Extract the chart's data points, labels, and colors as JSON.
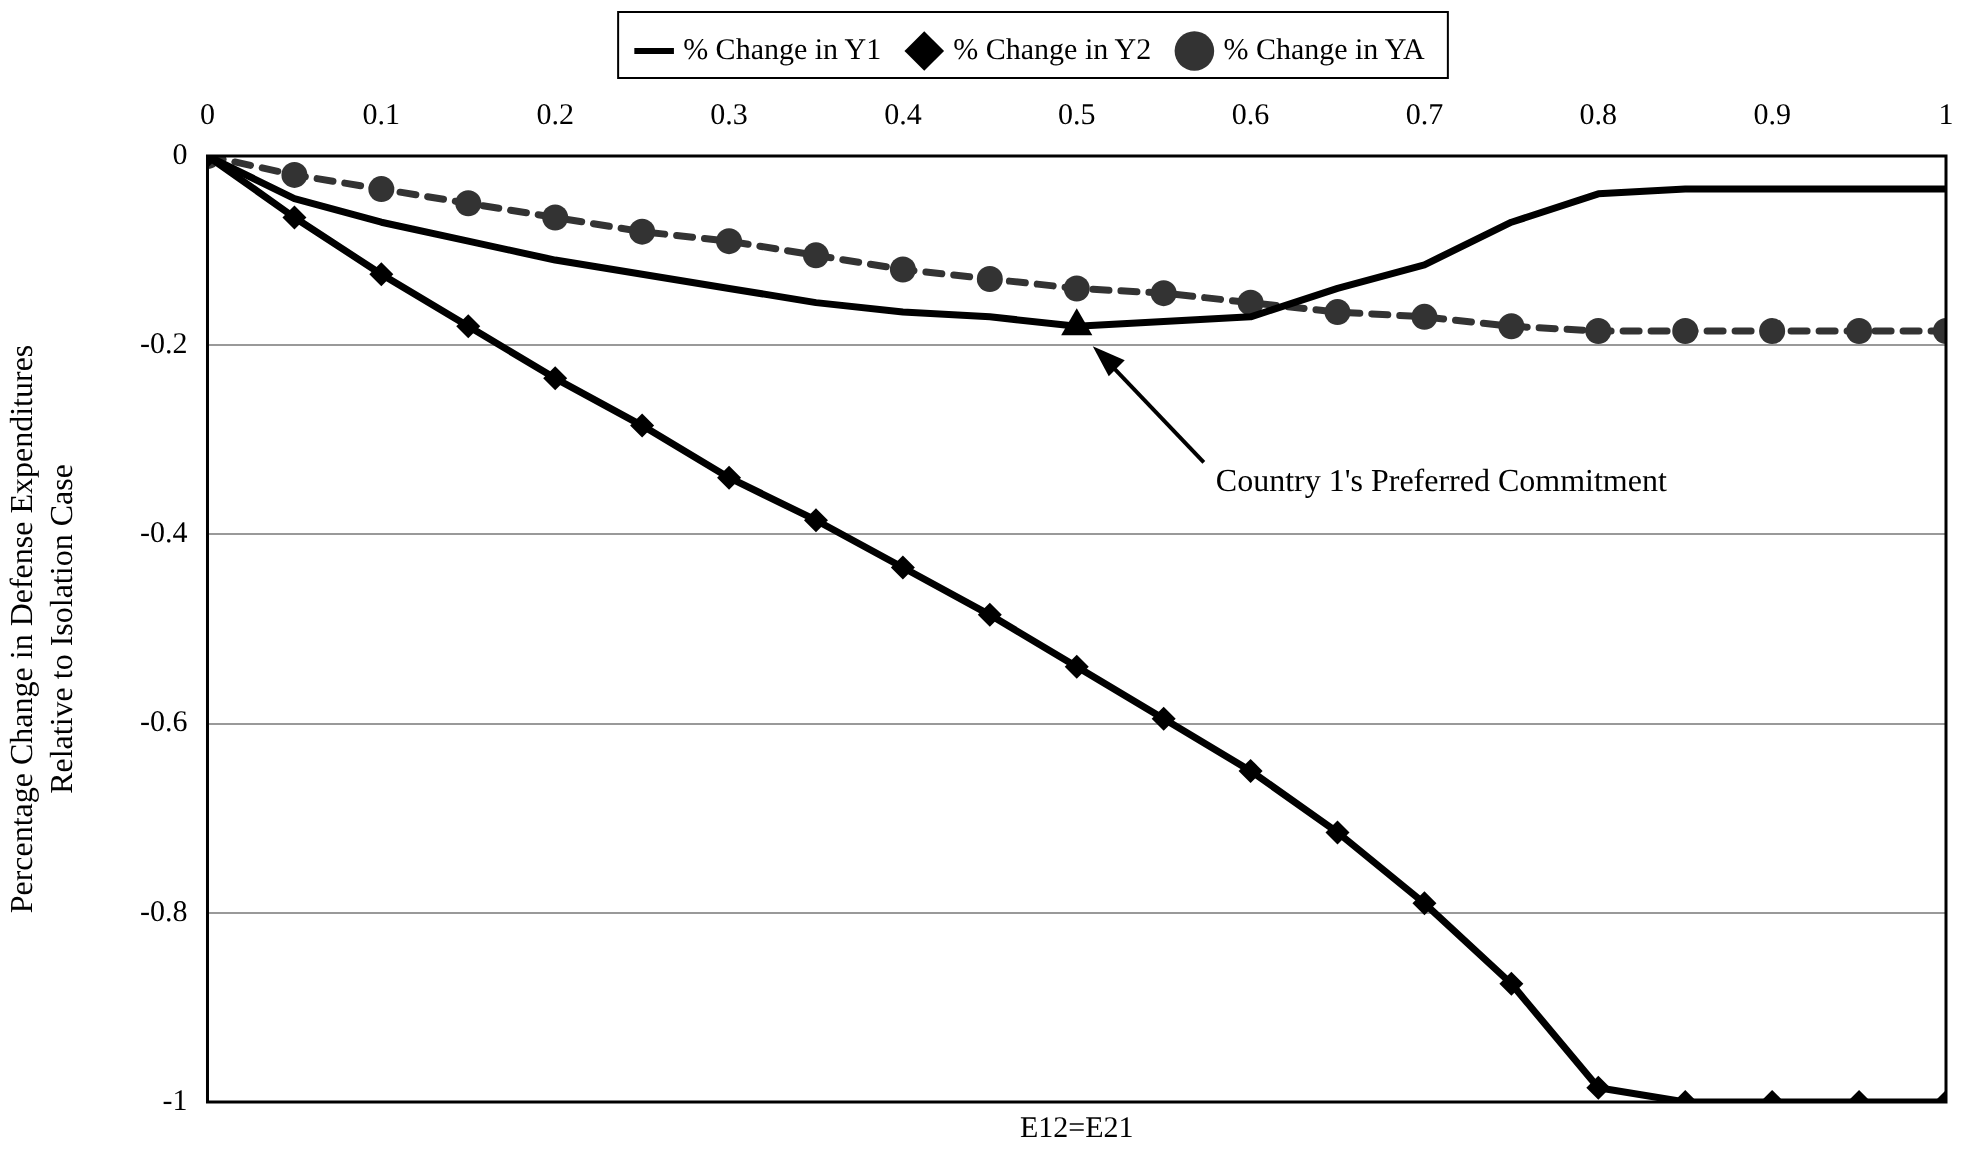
{
  "chart_data": {
    "type": "line",
    "xlabel": "E12=E21",
    "ylabel": "Percentage Change in Defense Expenditures\nRelative to Isolation Case",
    "x": [
      0,
      0.05,
      0.1,
      0.15,
      0.2,
      0.25,
      0.3,
      0.35,
      0.4,
      0.45,
      0.5,
      0.55,
      0.6,
      0.65,
      0.7,
      0.75,
      0.8,
      0.85,
      0.9,
      0.95,
      1
    ],
    "series": [
      {
        "name": "% Change in Y1",
        "color": "#000000",
        "marker": "none",
        "line_style": "solid",
        "values": [
          0,
          -0.045,
          -0.07,
          -0.09,
          -0.11,
          -0.125,
          -0.14,
          -0.155,
          -0.165,
          -0.17,
          -0.18,
          -0.175,
          -0.17,
          -0.14,
          -0.115,
          -0.07,
          -0.04,
          -0.035,
          -0.035,
          -0.035,
          -0.035
        ]
      },
      {
        "name": "% Change in Y2",
        "color": "#000000",
        "marker": "diamond",
        "line_style": "solid",
        "values": [
          0,
          -0.065,
          -0.125,
          -0.18,
          -0.235,
          -0.285,
          -0.34,
          -0.385,
          -0.435,
          -0.485,
          -0.54,
          -0.595,
          -0.65,
          -0.715,
          -0.79,
          -0.875,
          -0.985,
          -1,
          -1,
          -1,
          -1
        ]
      },
      {
        "name": "% Change in YA",
        "color": "#333333",
        "marker": "circle",
        "line_style": "dashed",
        "values": [
          0,
          -0.02,
          -0.035,
          -0.05,
          -0.065,
          -0.08,
          -0.09,
          -0.105,
          -0.12,
          -0.13,
          -0.14,
          -0.145,
          -0.155,
          -0.165,
          -0.17,
          -0.18,
          -0.185,
          -0.185,
          -0.185,
          -0.185,
          -0.185
        ]
      },
      {
        "type": "scatter",
        "color": "#000000",
        "marker": "triangle",
        "x": [
          0.5
        ],
        "values": [
          -0.18
        ]
      }
    ],
    "xlim": [
      0,
      1
    ],
    "xticks": [
      0,
      0.1,
      0.2,
      0.3,
      0.4,
      0.5,
      0.6,
      0.7,
      0.8,
      0.9,
      1
    ],
    "ylim": [
      -1,
      0
    ],
    "yticks": [
      -1,
      -0.8,
      -0.6,
      -0.4,
      -0.2,
      0
    ],
    "annotations": [
      "Country 1's Preferred Commitment"
    ],
    "grid": "y",
    "legend": "top"
  }
}
